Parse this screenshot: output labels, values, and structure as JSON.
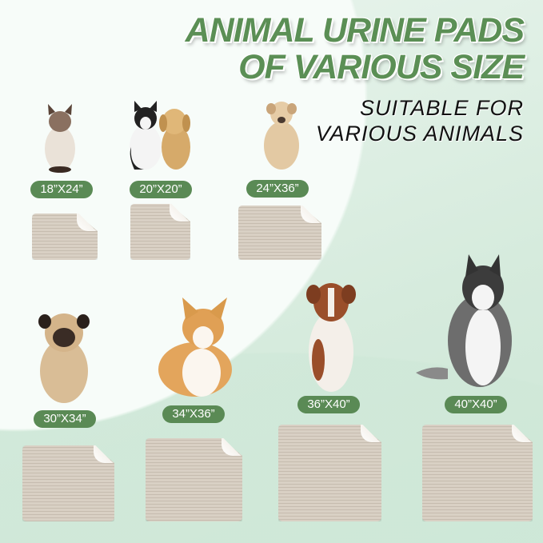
{
  "heading": {
    "line1": "ANIMAL URINE PADS",
    "line2": "OF VARIOUS SIZE"
  },
  "subheading": {
    "line1": "SUITABLE FOR",
    "line2": "VARIOUS ANIMALS"
  },
  "sizes": [
    {
      "label": "18”X24”",
      "animal": "siamese-cat"
    },
    {
      "label": "20”X20”",
      "animal": "cat-and-puppy"
    },
    {
      "label": "24”X36”",
      "animal": "labrador-dog"
    },
    {
      "label": "30”X34”",
      "animal": "pug"
    },
    {
      "label": "34”X36”",
      "animal": "corgi"
    },
    {
      "label": "36”X40”",
      "animal": "australian-shepherd"
    },
    {
      "label": "40”X40”",
      "animal": "husky"
    }
  ],
  "colors": {
    "accent": "#5a8a55",
    "pad": "#d4cbbf",
    "background": "#d6ebdd"
  }
}
